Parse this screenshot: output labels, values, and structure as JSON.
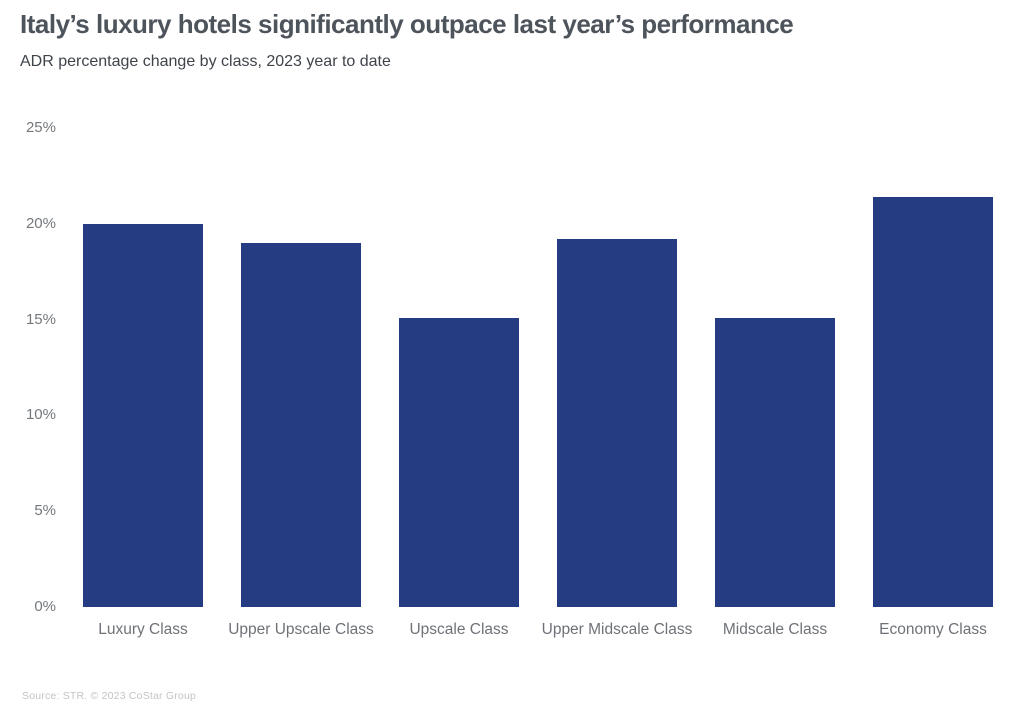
{
  "header": {
    "title": "Italy’s luxury hotels significantly outpace last year’s performance",
    "subtitle": "ADR percentage change by class, 2023 year to date"
  },
  "chart_data": {
    "type": "bar",
    "categories": [
      "Luxury Class",
      "Upper Upscale Class",
      "Upscale Class",
      "Upper Midscale Class",
      "Midscale Class",
      "Economy Class"
    ],
    "values": [
      20.0,
      19.0,
      15.1,
      19.2,
      15.1,
      21.4
    ],
    "title": "Italy’s luxury hotels significantly outpace last year’s performance",
    "subtitle": "ADR percentage change by class, 2023 year to date",
    "xlabel": "",
    "ylabel": "",
    "ylim": [
      0,
      25
    ],
    "yticks": [
      0,
      5,
      10,
      15,
      20,
      25
    ],
    "ytick_labels": [
      "0%",
      "5%",
      "10%",
      "15%",
      "20%",
      "25%"
    ],
    "grid": false,
    "legend": false,
    "bar_color": "#263c82"
  },
  "footer": {
    "source": "Source: STR. © 2023 CoStar Group"
  },
  "colors": {
    "bar": "#263c82",
    "title": "#4d545b",
    "subtitle": "#3f444b",
    "axis_tick": "#73787d",
    "axis_category": "#6e7277",
    "source": "#c4c4c4",
    "background": "#ffffff"
  }
}
